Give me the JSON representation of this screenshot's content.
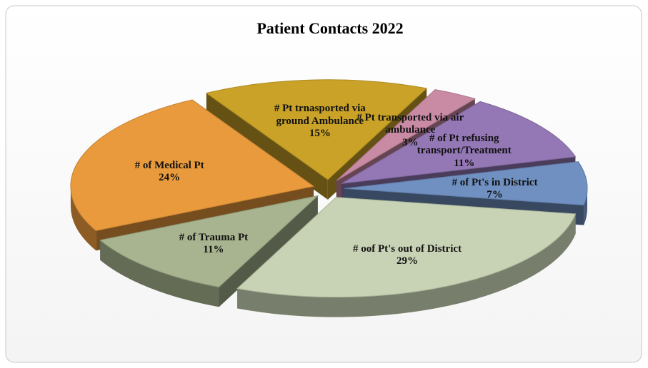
{
  "chart_data": {
    "type": "pie",
    "title": "Patient Contacts 2022",
    "categories": [
      "# Pt trnasported via ground Ambulance",
      "# Pt transported via air ambulance",
      "# of Pt refusing transport/Treatment",
      "# of Pt's in District",
      "# oof Pt's out of District",
      "# of Trauma Pt",
      "# of Medical Pt"
    ],
    "values": [
      15,
      3,
      11,
      7,
      29,
      11,
      24
    ],
    "value_labels": [
      "15%",
      "3%",
      "11%",
      "7%",
      "29%",
      "11%",
      "24%"
    ],
    "colors": [
      "#c9a227",
      "#c98aa4",
      "#9477b5",
      "#6f90c0",
      "#c8d2b4",
      "#a8b48f",
      "#e99a3c"
    ]
  }
}
